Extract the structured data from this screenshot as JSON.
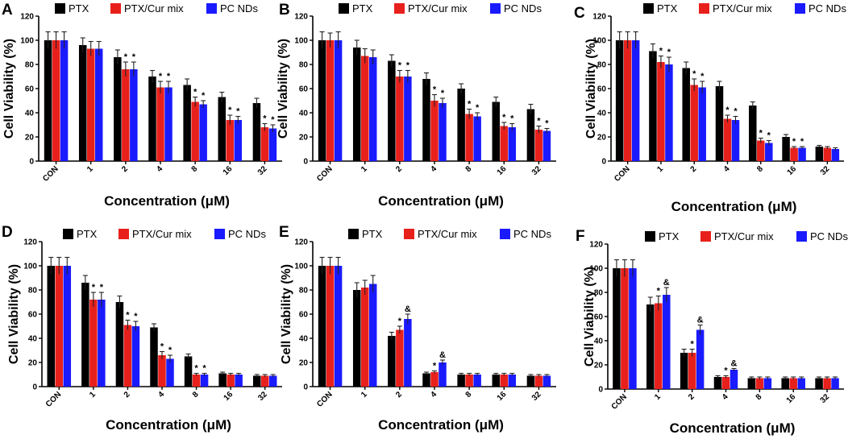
{
  "colors": {
    "PTX": "#000000",
    "PTX/Cur mix": "#e8201c",
    "PC NDs": "#1a1aff"
  },
  "chart_data": [
    {
      "panel": "A",
      "type": "bar",
      "categories": [
        "CON",
        "1",
        "2",
        "4",
        "8",
        "16",
        "32"
      ],
      "ylabel": "Cell Viability (%)",
      "xlabel": "Concentration (μM)",
      "ylim": [
        0,
        120
      ],
      "yticks": [
        0,
        20,
        40,
        60,
        80,
        100,
        120
      ],
      "series": [
        {
          "name": "PTX",
          "values": [
            100,
            96,
            86,
            70,
            63,
            53,
            48
          ],
          "errors": [
            7,
            6,
            6,
            5,
            5,
            4,
            4
          ]
        },
        {
          "name": "PTX/Cur mix",
          "values": [
            100,
            93,
            76,
            61,
            49,
            34,
            28
          ],
          "errors": [
            7,
            6,
            6,
            5,
            4,
            4,
            3
          ]
        },
        {
          "name": "PC NDs",
          "values": [
            100,
            93,
            76,
            61,
            47,
            34,
            27
          ],
          "errors": [
            7,
            6,
            6,
            5,
            3,
            3,
            3
          ]
        }
      ],
      "annotations": [
        [
          "",
          "",
          ""
        ],
        [
          "",
          "",
          ""
        ],
        [
          "",
          "*",
          "*"
        ],
        [
          "",
          "*",
          "*"
        ],
        [
          "",
          "*",
          "*"
        ],
        [
          "",
          "*",
          "*"
        ],
        [
          "",
          "*",
          "*"
        ]
      ]
    },
    {
      "panel": "B",
      "type": "bar",
      "categories": [
        "CON",
        "1",
        "2",
        "4",
        "8",
        "16",
        "32"
      ],
      "ylabel": "Cell Viability (%)",
      "xlabel": "Concentration (μM)",
      "ylim": [
        0,
        120
      ],
      "yticks": [
        0,
        20,
        40,
        60,
        80,
        100,
        120
      ],
      "series": [
        {
          "name": "PTX",
          "values": [
            100,
            94,
            83,
            68,
            60,
            49,
            43
          ],
          "errors": [
            7,
            6,
            5,
            5,
            4,
            4,
            4
          ]
        },
        {
          "name": "PTX/Cur mix",
          "values": [
            100,
            87,
            70,
            50,
            39,
            29,
            26
          ],
          "errors": [
            6,
            6,
            5,
            5,
            4,
            3,
            3
          ]
        },
        {
          "name": "PC NDs",
          "values": [
            100,
            86,
            70,
            48,
            37,
            28,
            25
          ],
          "errors": [
            7,
            6,
            5,
            4,
            3,
            3,
            2
          ]
        }
      ],
      "annotations": [
        [
          "",
          "",
          ""
        ],
        [
          "",
          "",
          ""
        ],
        [
          "",
          "*",
          "*"
        ],
        [
          "",
          "*",
          "*"
        ],
        [
          "",
          "*",
          "*"
        ],
        [
          "",
          "*",
          "*"
        ],
        [
          "",
          "*",
          "*"
        ]
      ]
    },
    {
      "panel": "C",
      "type": "bar",
      "categories": [
        "CON",
        "1",
        "2",
        "4",
        "8",
        "16",
        "32"
      ],
      "ylabel": "Cell Viability (%)",
      "xlabel": "Concentration (μM)",
      "ylim": [
        0,
        120
      ],
      "yticks": [
        0,
        20,
        40,
        60,
        80,
        100,
        120
      ],
      "series": [
        {
          "name": "PTX",
          "values": [
            100,
            91,
            77,
            62,
            46,
            20,
            12
          ],
          "errors": [
            7,
            6,
            5,
            4,
            3,
            2,
            1
          ]
        },
        {
          "name": "PTX/Cur mix",
          "values": [
            100,
            82,
            63,
            35,
            17,
            11,
            11
          ],
          "errors": [
            7,
            5,
            5,
            3,
            2,
            1,
            1
          ]
        },
        {
          "name": "PC NDs",
          "values": [
            100,
            80,
            61,
            34,
            15,
            11,
            10
          ],
          "errors": [
            7,
            6,
            5,
            3,
            2,
            1,
            1
          ]
        }
      ],
      "annotations": [
        [
          "",
          "",
          ""
        ],
        [
          "",
          "*",
          "*"
        ],
        [
          "",
          "*",
          "*"
        ],
        [
          "",
          "*",
          "*"
        ],
        [
          "",
          "*",
          "*"
        ],
        [
          "",
          "*",
          "*"
        ],
        [
          "",
          "",
          ""
        ]
      ]
    },
    {
      "panel": "D",
      "type": "bar",
      "categories": [
        "CON",
        "1",
        "2",
        "4",
        "8",
        "16",
        "32"
      ],
      "ylabel": "Cell Viability (%)",
      "xlabel": "Concentration (μM)",
      "ylim": [
        0,
        120
      ],
      "yticks": [
        0,
        20,
        40,
        60,
        80,
        100,
        120
      ],
      "series": [
        {
          "name": "PTX",
          "values": [
            100,
            86,
            70,
            49,
            25,
            11,
            9
          ],
          "errors": [
            7,
            6,
            5,
            3,
            2,
            1,
            1
          ]
        },
        {
          "name": "PTX/Cur mix",
          "values": [
            100,
            72,
            51,
            26,
            10,
            10,
            9
          ],
          "errors": [
            7,
            6,
            4,
            3,
            1,
            1,
            1
          ]
        },
        {
          "name": "PC NDs",
          "values": [
            100,
            72,
            50,
            23,
            10,
            10,
            9
          ],
          "errors": [
            7,
            6,
            4,
            3,
            1,
            1,
            1
          ]
        }
      ],
      "annotations": [
        [
          "",
          "",
          ""
        ],
        [
          "",
          "*",
          "*"
        ],
        [
          "",
          "*",
          "*"
        ],
        [
          "",
          "*",
          "*"
        ],
        [
          "",
          "*",
          "*"
        ],
        [
          "",
          "",
          ""
        ],
        [
          "",
          "",
          ""
        ]
      ]
    },
    {
      "panel": "E",
      "type": "bar",
      "categories": [
        "CON",
        "1",
        "2",
        "4",
        "8",
        "16",
        "32"
      ],
      "ylabel": "Cell Viability (%)",
      "xlabel": "Concentration (μM)",
      "ylim": [
        0,
        120
      ],
      "yticks": [
        0,
        20,
        40,
        60,
        80,
        100,
        120
      ],
      "series": [
        {
          "name": "PTX",
          "values": [
            100,
            80,
            42,
            11,
            10,
            10,
            9
          ],
          "errors": [
            7,
            6,
            3,
            1,
            1,
            1,
            1
          ]
        },
        {
          "name": "PTX/Cur mix",
          "values": [
            100,
            82,
            47,
            12,
            10,
            10,
            9
          ],
          "errors": [
            7,
            6,
            3,
            1,
            1,
            1,
            1
          ]
        },
        {
          "name": "PC NDs",
          "values": [
            100,
            85,
            56,
            20,
            10,
            10,
            9
          ],
          "errors": [
            7,
            7,
            4,
            2,
            1,
            1,
            1
          ]
        }
      ],
      "annotations": [
        [
          "",
          "",
          ""
        ],
        [
          "",
          "",
          ""
        ],
        [
          "",
          "*",
          "&"
        ],
        [
          "",
          "*",
          "&"
        ],
        [
          "",
          "",
          ""
        ],
        [
          "",
          "",
          ""
        ],
        [
          "",
          "",
          ""
        ]
      ]
    },
    {
      "panel": "F",
      "type": "bar",
      "categories": [
        "CON",
        "1",
        "2",
        "4",
        "8",
        "16",
        "32"
      ],
      "ylabel": "Cell Viability (%)",
      "xlabel": "Concentration (μM)",
      "ylim": [
        0,
        120
      ],
      "yticks": [
        0,
        20,
        40,
        60,
        80,
        100,
        120
      ],
      "series": [
        {
          "name": "PTX",
          "values": [
            100,
            70,
            30,
            10,
            9,
            9,
            9
          ],
          "errors": [
            7,
            6,
            3,
            1,
            1,
            1,
            1
          ]
        },
        {
          "name": "PTX/Cur mix",
          "values": [
            100,
            71,
            30,
            10,
            9,
            9,
            9
          ],
          "errors": [
            7,
            6,
            3,
            1,
            1,
            1,
            1
          ]
        },
        {
          "name": "PC NDs",
          "values": [
            100,
            78,
            49,
            16,
            9,
            9,
            9
          ],
          "errors": [
            7,
            6,
            4,
            1,
            1,
            1,
            1
          ]
        }
      ],
      "annotations": [
        [
          "",
          "",
          ""
        ],
        [
          "",
          "*",
          "&"
        ],
        [
          "",
          "*",
          "&"
        ],
        [
          "",
          "*",
          "&"
        ],
        [
          "",
          "",
          ""
        ],
        [
          "",
          "",
          ""
        ],
        [
          "",
          "",
          ""
        ]
      ]
    }
  ]
}
